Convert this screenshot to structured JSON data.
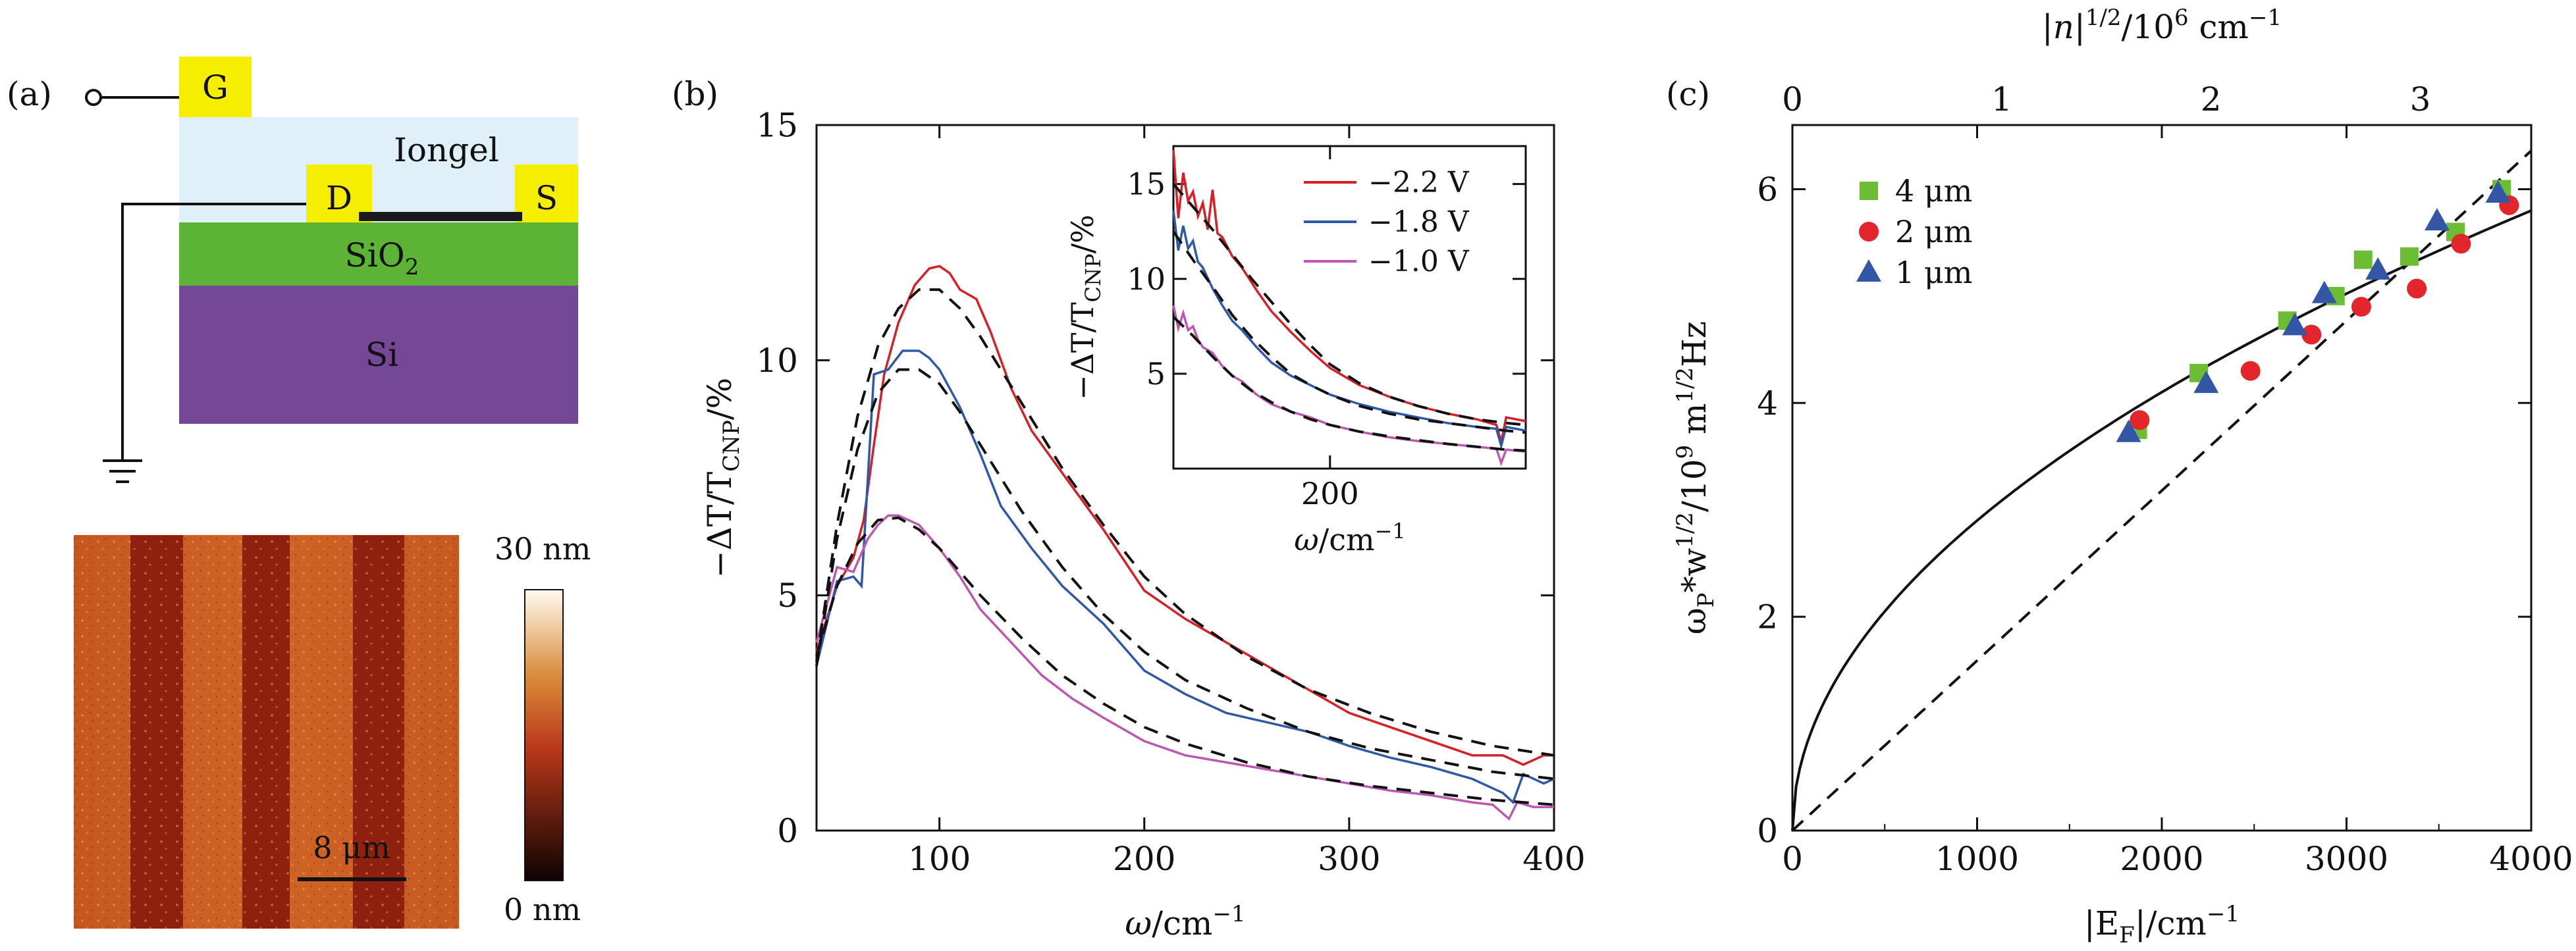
{
  "panels": {
    "a": {
      "label": "(a)",
      "device": {
        "gate": "G",
        "drain": "D",
        "source": "S",
        "iongel": "Iongel",
        "sio2_base": "SiO",
        "sio2_sub": "2",
        "si": "Si"
      },
      "afm": {
        "scale_bar": "8 μm",
        "colorbar_max": "30 nm",
        "colorbar_min": "0 nm",
        "colors": {
          "low": "#0d0302",
          "mid": "#b9371a",
          "high": "#fffaf0"
        }
      }
    },
    "b": {
      "label": "(b)"
    },
    "c": {
      "label": "(c)"
    }
  },
  "colors": {
    "gate_contact": "#f5ee00",
    "iongel": "#dff0f8",
    "sio2": "#5cb335",
    "si": "#744797",
    "v22": "#d62028",
    "v18": "#2f58a8",
    "v10": "#bf57b2",
    "green_marker": "#6cbd33",
    "red_marker": "#e3262c",
    "blue_marker": "#3356a6"
  },
  "chart_data": [
    {
      "type": "line",
      "xlim": [
        40,
        400
      ],
      "ylim": [
        0,
        15
      ],
      "xticks": [
        "100",
        "200",
        "300",
        "400"
      ],
      "yticks": [
        "0",
        "5",
        "10",
        "15"
      ],
      "xlabel": "ω/cm⁻¹",
      "ylabel": "−ΔT/T_CNP/%",
      "xlabel_main": "ω",
      "xlabel_unit": "/cm",
      "xlabel_sup": "−1",
      "ylabel_pre": "−ΔT/T",
      "ylabel_sub": "CNP",
      "ylabel_post": "/%",
      "series": [
        {
          "name": "−2.2 V",
          "color": "#d62028",
          "x": [
            40,
            50,
            58,
            63,
            68,
            73,
            80,
            88,
            95,
            100,
            105,
            110,
            118,
            125,
            135,
            145,
            160,
            180,
            200,
            220,
            240,
            260,
            280,
            300,
            320,
            340,
            360,
            375,
            385,
            395,
            400
          ],
          "y": [
            3.8,
            5.2,
            5.8,
            6.6,
            8.2,
            9.7,
            10.8,
            11.6,
            11.95,
            12.0,
            11.85,
            11.5,
            11.3,
            10.6,
            9.4,
            8.5,
            7.6,
            6.4,
            5.1,
            4.5,
            4.0,
            3.5,
            3.0,
            2.5,
            2.2,
            1.9,
            1.6,
            1.6,
            1.4,
            1.6,
            1.6
          ]
        },
        {
          "name": "−1.8 V",
          "color": "#2f58a8",
          "x": [
            40,
            50,
            58,
            62,
            68,
            75,
            82,
            90,
            95,
            100,
            110,
            120,
            130,
            145,
            160,
            180,
            200,
            220,
            240,
            260,
            280,
            300,
            320,
            340,
            360,
            375,
            380,
            385,
            395,
            400
          ],
          "y": [
            3.5,
            5.3,
            5.4,
            5.2,
            9.7,
            9.8,
            10.2,
            10.2,
            10.05,
            9.8,
            9.0,
            8.0,
            6.9,
            6.0,
            5.2,
            4.4,
            3.4,
            2.9,
            2.5,
            2.3,
            2.1,
            1.8,
            1.55,
            1.35,
            1.1,
            0.8,
            0.6,
            1.2,
            1.0,
            1.1
          ]
        },
        {
          "name": "−1.0 V",
          "color": "#bf57b2",
          "x": [
            40,
            50,
            58,
            65,
            70,
            75,
            80,
            85,
            90,
            100,
            110,
            120,
            135,
            150,
            165,
            180,
            200,
            220,
            240,
            260,
            280,
            300,
            320,
            340,
            360,
            370,
            378,
            382,
            390,
            400
          ],
          "y": [
            4.0,
            5.6,
            5.5,
            6.2,
            6.5,
            6.7,
            6.7,
            6.6,
            6.5,
            6.0,
            5.4,
            4.7,
            4.0,
            3.3,
            2.8,
            2.4,
            1.9,
            1.6,
            1.45,
            1.3,
            1.15,
            1.0,
            0.85,
            0.75,
            0.6,
            0.55,
            0.25,
            0.6,
            0.5,
            0.5
          ]
        },
        {
          "name": "fit −2.2 V",
          "color": "#111111",
          "dashed": true,
          "x": [
            40,
            50,
            60,
            70,
            80,
            90,
            100,
            110,
            120,
            140,
            160,
            180,
            200,
            220,
            250,
            280,
            310,
            340,
            370,
            400
          ],
          "y": [
            3.6,
            6.5,
            8.8,
            10.3,
            11.1,
            11.5,
            11.5,
            11.1,
            10.5,
            9.1,
            7.7,
            6.5,
            5.4,
            4.6,
            3.7,
            3.0,
            2.5,
            2.1,
            1.8,
            1.6
          ]
        },
        {
          "name": "fit −1.8 V",
          "color": "#111111",
          "dashed": true,
          "x": [
            40,
            50,
            60,
            70,
            80,
            90,
            100,
            110,
            120,
            140,
            160,
            180,
            200,
            220,
            250,
            280,
            310,
            340,
            370,
            400
          ],
          "y": [
            3.5,
            6.2,
            8.1,
            9.3,
            9.8,
            9.8,
            9.5,
            8.9,
            8.2,
            6.8,
            5.6,
            4.6,
            3.8,
            3.2,
            2.6,
            2.1,
            1.75,
            1.5,
            1.25,
            1.1
          ]
        },
        {
          "name": "fit −1.0 V",
          "color": "#111111",
          "dashed": true,
          "x": [
            40,
            50,
            60,
            70,
            80,
            90,
            100,
            110,
            120,
            140,
            160,
            180,
            200,
            220,
            250,
            280,
            310,
            340,
            370,
            400
          ],
          "y": [
            3.7,
            5.2,
            6.1,
            6.6,
            6.65,
            6.4,
            6.0,
            5.5,
            5.0,
            4.1,
            3.3,
            2.7,
            2.2,
            1.85,
            1.45,
            1.15,
            0.95,
            0.8,
            0.65,
            0.55
          ]
        }
      ]
    },
    {
      "type": "line",
      "inset": true,
      "xlim": [
        40,
        400
      ],
      "ylim": [
        0,
        17
      ],
      "xticks": [
        "200"
      ],
      "yticks": [
        "5",
        "10",
        "15"
      ],
      "xlabel": "ω/cm⁻¹",
      "ylabel": "−ΔT/T_CNP/%",
      "xlabel_main": "ω",
      "xlabel_unit": "/cm",
      "xlabel_sup": "−1",
      "ylabel_pre": "−ΔT/T",
      "ylabel_sub": "CNP",
      "ylabel_post": "/%",
      "legend": [
        "−2.2 V",
        "−1.8 V",
        "−1.0 V"
      ],
      "legend_placement": "top-right",
      "series": [
        {
          "name": "−2.2 V",
          "color": "#d62028",
          "x": [
            40,
            45,
            50,
            55,
            60,
            65,
            70,
            75,
            80,
            85,
            90,
            100,
            110,
            125,
            140,
            160,
            180,
            200,
            230,
            260,
            290,
            320,
            350,
            370,
            375,
            380,
            400
          ],
          "y": [
            16.8,
            13.2,
            15.6,
            14.1,
            14.6,
            13.3,
            14.0,
            12.6,
            14.7,
            12.4,
            12.2,
            11.2,
            10.6,
            9.4,
            8.3,
            7.2,
            6.2,
            5.3,
            4.4,
            3.8,
            3.3,
            2.9,
            2.6,
            2.3,
            1.4,
            2.7,
            2.5
          ]
        },
        {
          "name": "−1.8 V",
          "color": "#2f58a8",
          "x": [
            40,
            45,
            50,
            55,
            60,
            65,
            70,
            80,
            90,
            100,
            110,
            125,
            140,
            160,
            180,
            200,
            230,
            260,
            290,
            320,
            350,
            370,
            375,
            380,
            400
          ],
          "y": [
            13.6,
            11.5,
            12.8,
            11.6,
            12.0,
            10.9,
            10.6,
            9.5,
            8.6,
            7.8,
            7.3,
            6.4,
            5.6,
            4.9,
            4.4,
            3.9,
            3.4,
            3.0,
            2.7,
            2.4,
            2.2,
            2.1,
            1.2,
            2.2,
            2.0
          ]
        },
        {
          "name": "−1.0 V",
          "color": "#bf57b2",
          "x": [
            40,
            45,
            50,
            55,
            60,
            65,
            70,
            80,
            90,
            100,
            110,
            125,
            140,
            160,
            180,
            200,
            230,
            260,
            290,
            320,
            350,
            370,
            375,
            380,
            400
          ],
          "y": [
            8.6,
            7.4,
            8.2,
            7.3,
            7.5,
            6.8,
            6.4,
            6.1,
            5.4,
            4.9,
            4.6,
            3.9,
            3.4,
            3.0,
            2.7,
            2.3,
            1.95,
            1.65,
            1.45,
            1.3,
            1.15,
            1.05,
            0.3,
            1.0,
            0.9
          ]
        },
        {
          "name": "fit −2.2 V",
          "color": "#111111",
          "dashed": true,
          "x": [
            40,
            60,
            80,
            100,
            120,
            140,
            160,
            180,
            200,
            230,
            260,
            290,
            320,
            350,
            380,
            400
          ],
          "y": [
            15.0,
            13.8,
            12.6,
            11.3,
            10.0,
            8.8,
            7.6,
            6.5,
            5.5,
            4.5,
            3.8,
            3.3,
            2.9,
            2.6,
            2.4,
            2.3
          ]
        },
        {
          "name": "fit −1.8 V",
          "color": "#111111",
          "dashed": true,
          "x": [
            40,
            60,
            80,
            100,
            120,
            140,
            160,
            180,
            200,
            230,
            260,
            290,
            320,
            350,
            380,
            400
          ],
          "y": [
            12.5,
            11.0,
            9.6,
            8.1,
            6.9,
            5.9,
            5.0,
            4.4,
            3.9,
            3.3,
            2.9,
            2.6,
            2.4,
            2.2,
            2.0,
            1.9
          ]
        },
        {
          "name": "fit −1.0 V",
          "color": "#111111",
          "dashed": true,
          "x": [
            40,
            60,
            80,
            100,
            120,
            140,
            160,
            180,
            200,
            230,
            260,
            290,
            320,
            350,
            380,
            400
          ],
          "y": [
            8.0,
            7.0,
            5.9,
            4.9,
            4.1,
            3.5,
            3.0,
            2.6,
            2.3,
            1.95,
            1.7,
            1.5,
            1.3,
            1.15,
            1.0,
            0.95
          ]
        }
      ]
    },
    {
      "type": "scatter",
      "xlim": [
        0,
        4000
      ],
      "ylim": [
        0,
        6.6
      ],
      "xticks": [
        "0",
        "1000",
        "2000",
        "3000",
        "4000"
      ],
      "yticks": [
        "0",
        "2",
        "4",
        "6"
      ],
      "top_xlim": [
        0,
        3.53
      ],
      "top_xticks": [
        "0",
        "1",
        "2",
        "3"
      ],
      "xlabel": "|E_F|/cm⁻¹",
      "ylabel": "ω_P*w^1/2/10^9 m^1/2Hz",
      "top_xlabel": "|n|^1/2/10^6 cm^−1",
      "xlabel_pre": "|E",
      "xlabel_sub": "F",
      "xlabel_post": "|/cm",
      "xlabel_sup": "−1",
      "ylabel_pre": "ω",
      "ylabel_sub": "P",
      "ylabel_mid": "*w",
      "ylabel_sup": "1/2",
      "ylabel_mid2": "/10",
      "ylabel_sup2": "9",
      "ylabel_mid3": " m",
      "ylabel_sup3": "1/2",
      "ylabel_post": "Hz",
      "top_pre": "|n|",
      "top_sup": "1/2",
      "top_mid": "/10",
      "top_sup2": "6",
      "top_mid2": " cm",
      "top_sup3": "−1",
      "legend": [
        "4 μm",
        "2 μm",
        "1 μm"
      ],
      "legend_placement": "top-left",
      "series": [
        {
          "name": "4 μm",
          "marker": "square",
          "color": "#6cbd33",
          "x": [
            1870,
            2200,
            2680,
            2940,
            3090,
            3340,
            3590,
            3840
          ],
          "y": [
            3.75,
            4.28,
            4.77,
            5.0,
            5.34,
            5.37,
            5.6,
            6.0
          ]
        },
        {
          "name": "2 μm",
          "marker": "circle",
          "color": "#e3262c",
          "x": [
            1880,
            2480,
            2810,
            3080,
            3380,
            3620,
            3880
          ],
          "y": [
            3.84,
            4.3,
            4.64,
            4.9,
            5.07,
            5.49,
            5.85
          ]
        },
        {
          "name": "1 μm",
          "marker": "triangle",
          "color": "#3356a6",
          "x": [
            1820,
            2240,
            2720,
            2880,
            3170,
            3490,
            3820
          ],
          "y": [
            3.72,
            4.18,
            4.72,
            5.02,
            5.24,
            5.7,
            5.96
          ]
        }
      ],
      "curves": [
        {
          "name": "sqrt fit",
          "dashed": false,
          "coef": 0.0917
        },
        {
          "name": "linear fit",
          "dashed": true,
          "slope": 0.00159
        }
      ]
    }
  ]
}
